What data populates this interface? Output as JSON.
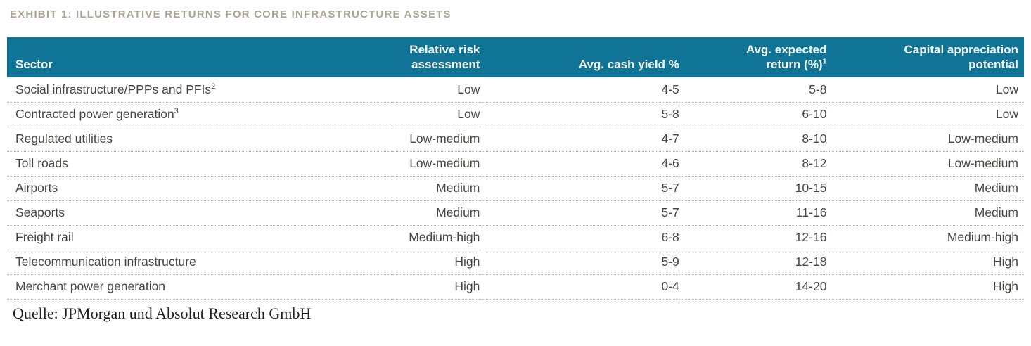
{
  "title": "EXHIBIT 1: ILLUSTRATIVE RETURNS FOR CORE INFRASTRUCTURE ASSETS",
  "source": "Quelle: JPMorgan und Absolut Research GmbH",
  "colors": {
    "header_bg": "#0f7495",
    "header_fg": "#f4f7f6",
    "title_color": "#aba394",
    "text_color": "#4a4541",
    "border_color": "#b5aea4",
    "source_color": "#221f1c"
  },
  "table": {
    "columns": [
      {
        "label": "Sector",
        "sup": "",
        "align": "left"
      },
      {
        "label": "Relative risk assessment",
        "sup": "",
        "align": "right"
      },
      {
        "label": "Avg. cash yield %",
        "sup": "",
        "align": "right"
      },
      {
        "label": "Avg. expected return (%)",
        "sup": "1",
        "align": "right"
      },
      {
        "label": "Capital appreciation potential",
        "sup": "",
        "align": "right"
      }
    ],
    "rows": [
      {
        "sector": "Social infrastructure/PPPs and PFIs",
        "sector_sup": "2",
        "risk": "Low",
        "cash_yield": "4-5",
        "expected_return": "5-8",
        "capital": "Low"
      },
      {
        "sector": "Contracted power generation",
        "sector_sup": "3",
        "risk": "Low",
        "cash_yield": "5-8",
        "expected_return": "6-10",
        "capital": "Low"
      },
      {
        "sector": "Regulated utilities",
        "sector_sup": "",
        "risk": "Low-medium",
        "cash_yield": "4-7",
        "expected_return": "8-10",
        "capital": "Low-medium"
      },
      {
        "sector": "Toll roads",
        "sector_sup": "",
        "risk": "Low-medium",
        "cash_yield": "4-6",
        "expected_return": "8-12",
        "capital": "Low-medium"
      },
      {
        "sector": "Airports",
        "sector_sup": "",
        "risk": "Medium",
        "cash_yield": "5-7",
        "expected_return": "10-15",
        "capital": "Medium"
      },
      {
        "sector": "Seaports",
        "sector_sup": "",
        "risk": "Medium",
        "cash_yield": "5-7",
        "expected_return": "11-16",
        "capital": "Medium"
      },
      {
        "sector": "Freight rail",
        "sector_sup": "",
        "risk": "Medium-high",
        "cash_yield": "6-8",
        "expected_return": "12-16",
        "capital": "Medium-high"
      },
      {
        "sector": "Telecommunication infrastructure",
        "sector_sup": "",
        "risk": "High",
        "cash_yield": "5-9",
        "expected_return": "12-18",
        "capital": "High"
      },
      {
        "sector": "Merchant power generation",
        "sector_sup": "",
        "risk": "High",
        "cash_yield": "0-4",
        "expected_return": "14-20",
        "capital": "High"
      }
    ]
  },
  "chart_data": {
    "type": "table",
    "title": "EXHIBIT 1: ILLUSTRATIVE RETURNS FOR CORE INFRASTRUCTURE ASSETS",
    "columns": [
      "Sector",
      "Relative risk assessment",
      "Avg. cash yield %",
      "Avg. expected return (%)1",
      "Capital appreciation potential"
    ],
    "rows": [
      [
        "Social infrastructure/PPPs and PFIs2",
        "Low",
        "4-5",
        "5-8",
        "Low"
      ],
      [
        "Contracted power generation3",
        "Low",
        "5-8",
        "6-10",
        "Low"
      ],
      [
        "Regulated utilities",
        "Low-medium",
        "4-7",
        "8-10",
        "Low-medium"
      ],
      [
        "Toll roads",
        "Low-medium",
        "4-6",
        "8-12",
        "Low-medium"
      ],
      [
        "Airports",
        "Medium",
        "5-7",
        "10-15",
        "Medium"
      ],
      [
        "Seaports",
        "Medium",
        "5-7",
        "11-16",
        "Medium"
      ],
      [
        "Freight rail",
        "Medium-high",
        "6-8",
        "12-16",
        "Medium-high"
      ],
      [
        "Telecommunication infrastructure",
        "High",
        "5-9",
        "12-18",
        "High"
      ],
      [
        "Merchant power generation",
        "High",
        "0-4",
        "14-20",
        "High"
      ]
    ]
  }
}
